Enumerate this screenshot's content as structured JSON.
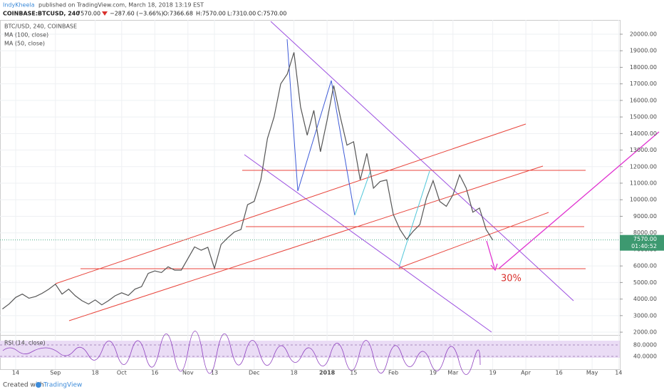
{
  "header": {
    "author": "IndyKheela",
    "published": "published on TradingView.com, March 18, 2018 13:19 EST",
    "symbol": "COINBASE:BTCUSD, 240",
    "last": "7570.00",
    "change": "−287.60 (−3.66%)",
    "ohlc": [
      "O:7366.68",
      "H:7570.00",
      "L:7310.00",
      "C:7570.00"
    ]
  },
  "chart_data": {
    "type": "line",
    "legend": [
      "BTC/USD, 240, COINBASE",
      "MA (100, close)",
      "MA (50, close)"
    ],
    "categories": [
      null,
      null,
      "14",
      null,
      null,
      null,
      null,
      null,
      "Sep",
      null,
      null,
      null,
      null,
      null,
      "18",
      null,
      null,
      null,
      "Oct",
      null,
      null,
      null,
      null,
      "16",
      null,
      null,
      null,
      null,
      "Nov",
      null,
      null,
      null,
      "13",
      null,
      null,
      null,
      null,
      null,
      "Dec",
      null,
      null,
      null,
      null,
      null,
      "18",
      null,
      null,
      null,
      null,
      "2018",
      null,
      null,
      null,
      "15",
      null,
      null,
      null,
      null,
      null,
      "Feb",
      null,
      null,
      null,
      null,
      null,
      "19",
      null,
      null,
      "Mar",
      null,
      null,
      null,
      null,
      null,
      "19",
      null,
      null,
      null,
      null,
      "Apr",
      null,
      null,
      null,
      null,
      "16",
      null,
      null,
      null,
      null,
      "May",
      null,
      null,
      null,
      "14"
    ],
    "series": [
      {
        "name": "BTC/USD",
        "color": "#555555",
        "values": [
          3400,
          3700,
          4100,
          4300,
          4050,
          4150,
          4350,
          4600,
          4900,
          4300,
          4600,
          4200,
          3900,
          3700,
          3950,
          3650,
          3900,
          4200,
          4380,
          4220,
          4600,
          4750,
          5550,
          5700,
          5600,
          5950,
          5750,
          5750,
          6450,
          7150,
          6950,
          7130,
          5850,
          7300,
          7700,
          8050,
          8200,
          9700,
          9900,
          11200,
          13700,
          15000,
          17000,
          17600,
          18900,
          15600,
          13900,
          15400,
          12900,
          14800,
          16900,
          15000,
          13300,
          13500,
          11200,
          12800,
          10700,
          11100,
          11200,
          9100,
          8200,
          7600,
          8100,
          8500,
          10100,
          11150,
          9900,
          9600,
          10300,
          11500,
          10700,
          9250,
          9500,
          8200,
          7570,
          null,
          null,
          null,
          null,
          null,
          null,
          null,
          null,
          null,
          null,
          null,
          null,
          null,
          null,
          null,
          null,
          null,
          null,
          null
        ]
      }
    ],
    "ylim": [
      1830,
      20860
    ],
    "yticks": [
      {
        "value": 2000,
        "label": "2000.00"
      },
      {
        "value": 3000,
        "label": "3000.00"
      },
      {
        "value": 4000,
        "label": "4000.00"
      },
      {
        "value": 5000,
        "label": "5000.00"
      },
      {
        "value": 6000,
        "label": "6000.00"
      },
      {
        "value": 7000,
        "label": "7000.00"
      },
      {
        "value": 8000,
        "label": "8000.00"
      },
      {
        "value": 9000,
        "label": "9000.00"
      },
      {
        "value": 10000,
        "label": "10000.00"
      },
      {
        "value": 11000,
        "label": "11000.00"
      },
      {
        "value": 12000,
        "label": "12000.00"
      },
      {
        "value": 13000,
        "label": "13000.00"
      },
      {
        "value": 14000,
        "label": "14000.00"
      },
      {
        "value": 15000,
        "label": "15000.00"
      },
      {
        "value": 16000,
        "label": "16000.00"
      },
      {
        "value": 17000,
        "label": "17000.00"
      },
      {
        "value": 18000,
        "label": "18000.00"
      },
      {
        "value": 19000,
        "label": "19000.00"
      },
      {
        "value": 20000,
        "label": "20000.00"
      }
    ],
    "last_price": {
      "value": 7570,
      "label": "7570.00"
    },
    "countdown": "01:40:52",
    "annotation": "30%",
    "grid": true
  },
  "rsi": {
    "label": "RSI (14, close)",
    "ticks": [
      "80.0000",
      "40.0000"
    ]
  },
  "footer": {
    "created": "Created with",
    "brand": "TradingView"
  }
}
